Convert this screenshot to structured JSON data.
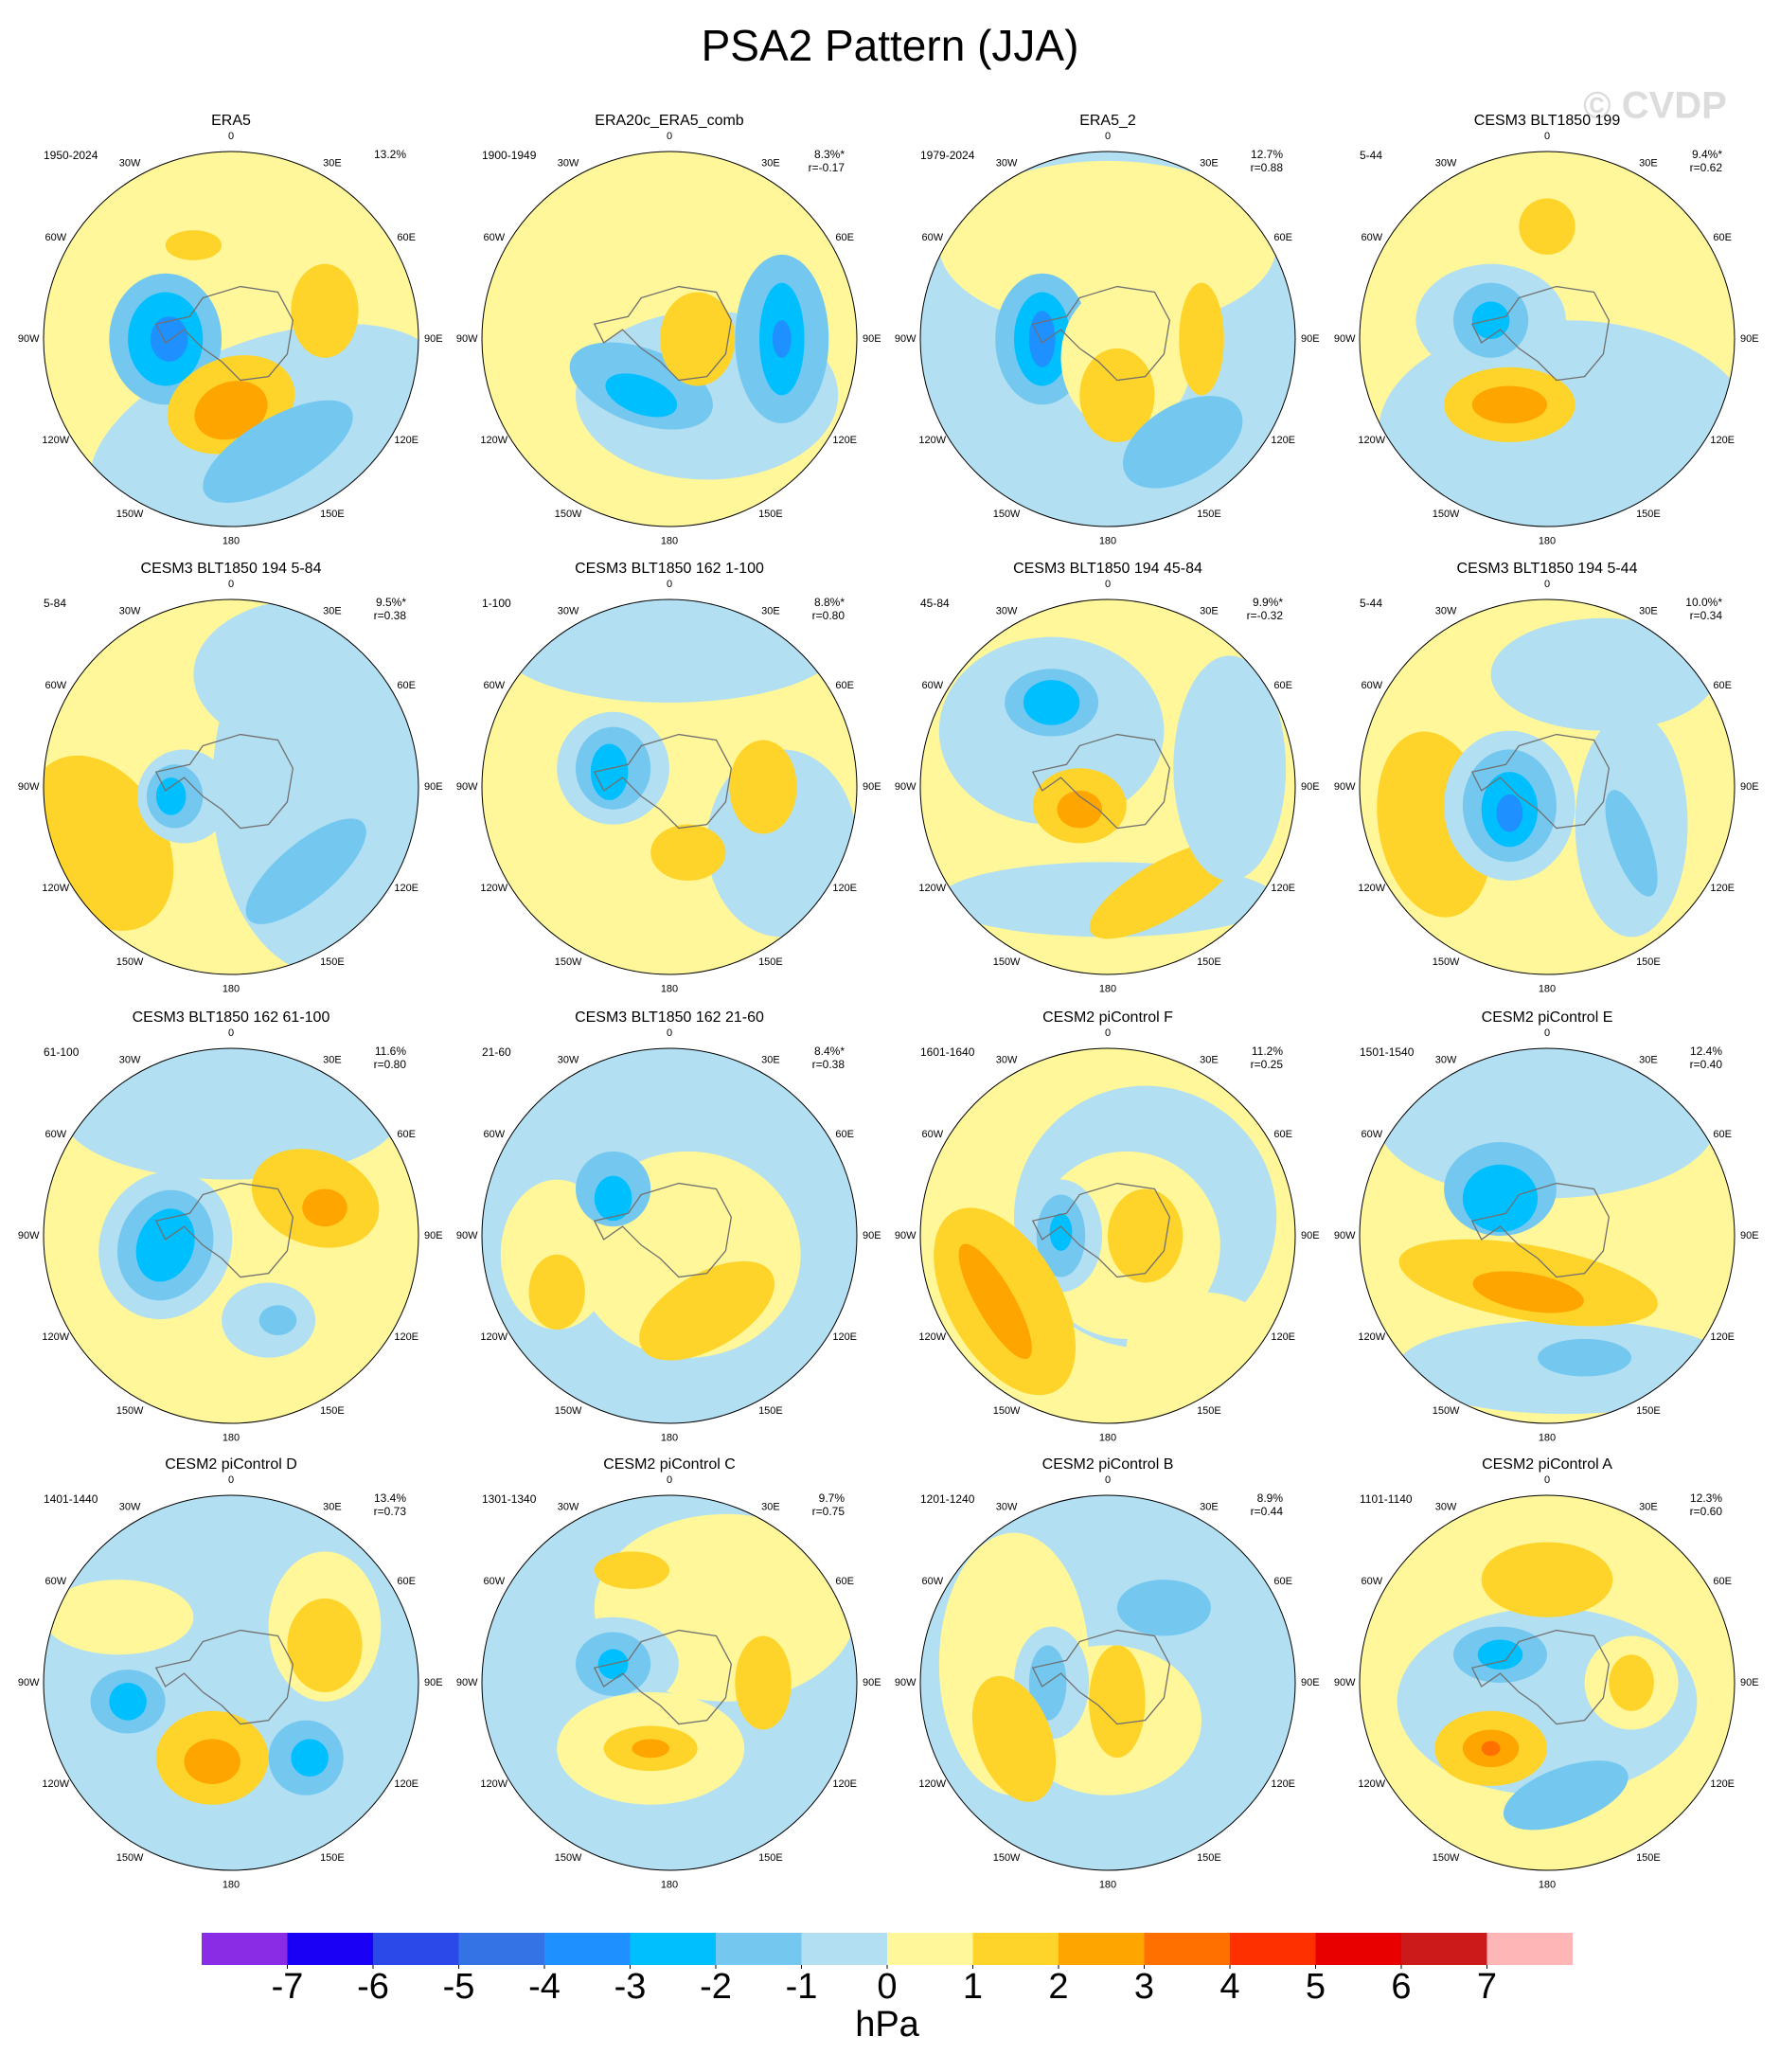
{
  "title": "PSA2 Pattern (JJA)",
  "watermark": "© CVDP",
  "longitude_labels": [
    "0",
    "30E",
    "60E",
    "90E",
    "120E",
    "150E",
    "180",
    "150W",
    "120W",
    "90W",
    "60W",
    "30W"
  ],
  "panels": [
    {
      "title": "ERA5",
      "period": "1950-2024",
      "variance": "13.2%"
    },
    {
      "title": "ERA20c_ERA5_comb",
      "period": "1900-1949",
      "variance": "8.3%*",
      "correlation": "r=-0.17"
    },
    {
      "title": "ERA5_2",
      "period": "1979-2024",
      "variance": "12.7%",
      "correlation": "r=0.88"
    },
    {
      "title": "CESM3 BLT1850 199",
      "period": "5-44",
      "variance": "9.4%*",
      "correlation": "r=0.62"
    },
    {
      "title": "CESM3 BLT1850 194 5-84",
      "period": "5-84",
      "variance": "9.5%*",
      "correlation": "r=0.38"
    },
    {
      "title": "CESM3 BLT1850 162 1-100",
      "period": "1-100",
      "variance": "8.8%*",
      "correlation": "r=0.80"
    },
    {
      "title": "CESM3 BLT1850 194 45-84",
      "period": "45-84",
      "variance": "9.9%*",
      "correlation": "r=-0.32"
    },
    {
      "title": "CESM3 BLT1850 194 5-44",
      "period": "5-44",
      "variance": "10.0%*",
      "correlation": "r=0.34"
    },
    {
      "title": "CESM3 BLT1850 162 61-100",
      "period": "61-100",
      "variance": "11.6%",
      "correlation": "r=0.80"
    },
    {
      "title": "CESM3 BLT1850 162 21-60",
      "period": "21-60",
      "variance": "8.4%*",
      "correlation": "r=0.38"
    },
    {
      "title": "CESM2 piControl F",
      "period": "1601-1640",
      "variance": "11.2%",
      "correlation": "r=0.25"
    },
    {
      "title": "CESM2 piControl E",
      "period": "1501-1540",
      "variance": "12.4%",
      "correlation": "r=0.40"
    },
    {
      "title": "CESM2 piControl D",
      "period": "1401-1440",
      "variance": "13.4%",
      "correlation": "r=0.73"
    },
    {
      "title": "CESM2 piControl C",
      "period": "1301-1340",
      "variance": "9.7%",
      "correlation": "r=0.75"
    },
    {
      "title": "CESM2 piControl B",
      "period": "1201-1240",
      "variance": "8.9%",
      "correlation": "r=0.44"
    },
    {
      "title": "CESM2 piControl A",
      "period": "1101-1140",
      "variance": "12.3%",
      "correlation": "r=0.60"
    }
  ],
  "colorbar": {
    "levels": [
      -7,
      -6,
      -5,
      -4,
      -3,
      -2,
      -1,
      0,
      1,
      2,
      3,
      4,
      5,
      6,
      7
    ],
    "colors": [
      "#8a2be6",
      "#1a00f5",
      "#2b48e8",
      "#3473e6",
      "#1e90ff",
      "#00bfff",
      "#74c8f0",
      "#b3dff2",
      "#fff799",
      "#ffd42a",
      "#ffa500",
      "#ff7000",
      "#ff3000",
      "#e80000",
      "#cc1a1a",
      "#ffb6b6"
    ],
    "label": "hPa"
  }
}
